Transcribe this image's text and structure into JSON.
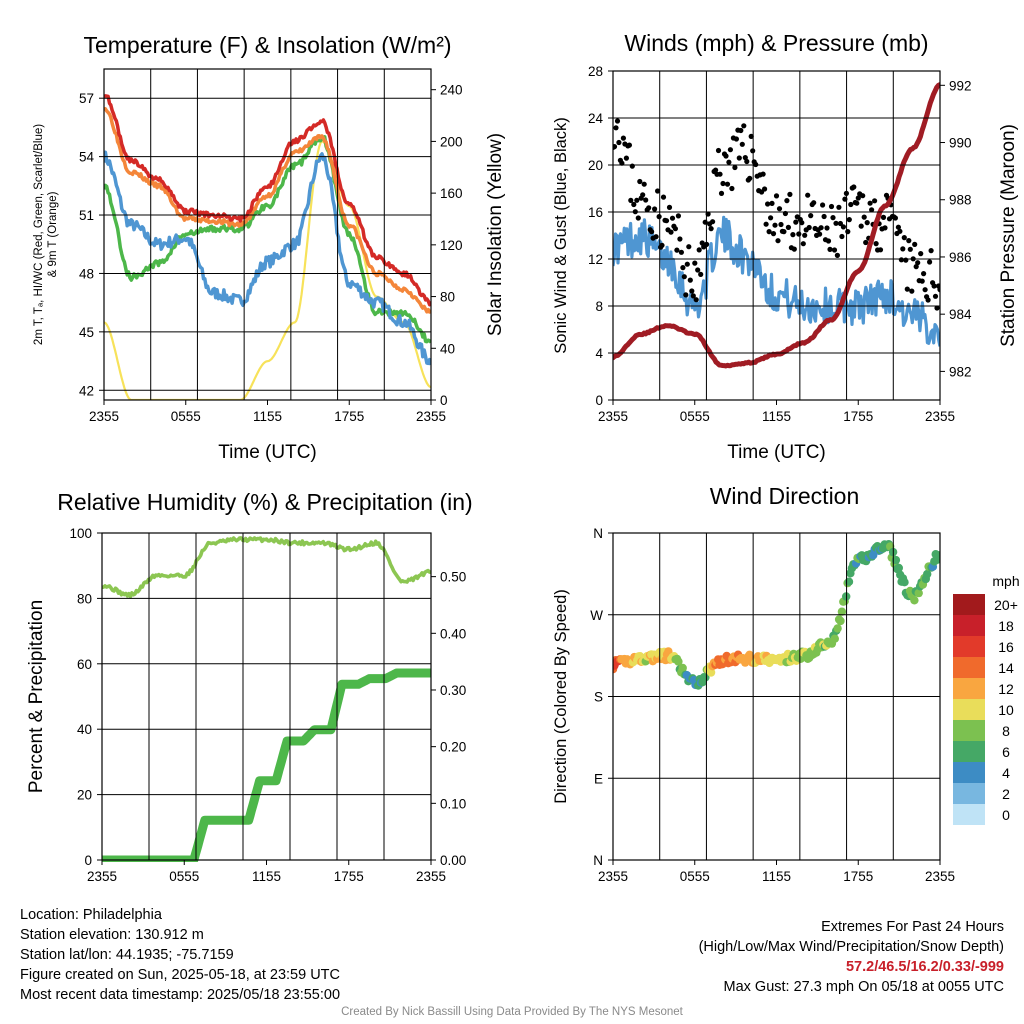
{
  "charts": {
    "temp": {
      "title": "Temperature (F) & Insolation (W/m²)",
      "xlabel": "Time (UTC)",
      "ylabel_lines": [
        "2m T, Tₐ, HI/WC (Red, Green, Scarlet/Blue)",
        "& 9m T (Orange)"
      ],
      "ylabel_right": "Solar Insolation (Yellow)",
      "x_ticks": [
        "2355",
        "0555",
        "1155",
        "1755",
        "2355"
      ],
      "y_ticks": [
        "42",
        "45",
        "48",
        "51",
        "54",
        "57"
      ],
      "y2_ticks": [
        "0",
        "40",
        "80",
        "120",
        "160",
        "200",
        "240"
      ]
    },
    "wind": {
      "title": "Winds (mph) & Pressure (mb)",
      "xlabel": "Time (UTC)",
      "ylabel": "Sonic Wind & Gust (Blue, Black)",
      "ylabel_right": "Station Pressure (Maroon)",
      "x_ticks": [
        "2355",
        "0555",
        "1155",
        "1755",
        "2355"
      ],
      "y_ticks": [
        "0",
        "4",
        "8",
        "12",
        "16",
        "20",
        "24",
        "28"
      ],
      "y2_ticks": [
        "982",
        "984",
        "986",
        "988",
        "990",
        "992"
      ]
    },
    "rh": {
      "title": "Relative Humidity (%) & Precipitation (in)",
      "ylabel": "Percent & Precipitation",
      "x_ticks": [
        "2355",
        "0555",
        "1155",
        "1755",
        "2355"
      ],
      "y_ticks": [
        "0",
        "20",
        "40",
        "60",
        "80",
        "100"
      ],
      "y2_ticks": [
        "0.00",
        "0.10",
        "0.20",
        "0.30",
        "0.40",
        "0.50"
      ]
    },
    "dir": {
      "title": "Wind Direction",
      "ylabel": "Direction (Colored By Speed)",
      "x_ticks": [
        "2355",
        "0555",
        "1155",
        "1755",
        "2355"
      ],
      "y_ticks": [
        "N",
        "E",
        "S",
        "W",
        "N"
      ],
      "legend_title": "mph",
      "legend_labels": [
        "20+",
        "18",
        "16",
        "14",
        "12",
        "10",
        "8",
        "6",
        "4",
        "2",
        "0"
      ],
      "legend_colors": [
        "#a21a1c",
        "#c8202a",
        "#e23a2a",
        "#f06a2c",
        "#f9a640",
        "#e9dd5a",
        "#7cc150",
        "#45a866",
        "#3d8cc4",
        "#78b7e0",
        "#bfe3f6"
      ]
    }
  },
  "info": {
    "location": "Location: Philadelphia",
    "elevation": "Station elevation: 130.912 m",
    "latlon": "Station lat/lon: 44.1935; -75.7159",
    "created": "Figure created on Sun, 2025-05-18, at 23:59 UTC",
    "recent": "Most recent data timestamp: 2025/05/18 23:55:00",
    "extremes_title": "Extremes For Past 24 Hours",
    "extremes_desc": "(High/Low/Max Wind/Precipitation/Snow Depth)",
    "extremes_values": "57.2/46.5/16.2/0.33/-999",
    "max_gust": "Max Gust: 27.3 mph On 05/18 at 0055 UTC",
    "credit": "Created By Nick Bassill Using Data Provided By The NYS Mesonet"
  },
  "colors": {
    "temp_red": "#d42a26",
    "temp_orange": "#f4863a",
    "dewpoint_green": "#4db74a",
    "wind_blue": "#4f96d2",
    "gust_black": "#000000",
    "pressure_maroon": "#a01c24",
    "solar_yellow": "#f7e25a",
    "rh_lightgreen": "#8cc652",
    "precip_green": "#4db74a"
  },
  "chart_data": [
    {
      "type": "line",
      "title": "Temperature (F) & Insolation (W/m²)",
      "xlabel": "Time (UTC)",
      "x": [
        "2355",
        "0155",
        "0355",
        "0555",
        "0755",
        "0955",
        "1155",
        "1355",
        "1555",
        "1755",
        "1955",
        "2155",
        "2355"
      ],
      "ylim": [
        41.5,
        58.5
      ],
      "y2lim": [
        0,
        256
      ],
      "series": [
        {
          "name": "2m T",
          "axis": "left",
          "values": [
            57.2,
            53.8,
            52.8,
            51.2,
            51.0,
            50.8,
            52.5,
            54.8,
            55.8,
            51.5,
            48.8,
            48.0,
            46.5
          ]
        },
        {
          "name": "9m T",
          "axis": "left",
          "values": [
            56.5,
            53.2,
            52.5,
            50.8,
            50.7,
            50.5,
            52.0,
            54.2,
            55.0,
            50.5,
            48.0,
            47.2,
            46.0
          ]
        },
        {
          "name": "HI/WC",
          "axis": "left",
          "values": [
            54.0,
            50.5,
            49.5,
            49.8,
            47.0,
            46.6,
            48.6,
            49.5,
            54.0,
            47.5,
            46.5,
            45.5,
            43.5
          ]
        },
        {
          "name": "Tₐ",
          "axis": "left",
          "values": [
            52.5,
            47.8,
            48.5,
            50.0,
            50.3,
            50.3,
            51.5,
            53.5,
            55.0,
            50.0,
            46.0,
            46.0,
            44.5
          ]
        },
        {
          "name": "Solar Insolation",
          "axis": "right",
          "values": [
            60,
            0,
            0,
            0,
            0,
            0,
            30,
            60,
            200,
            150,
            80,
            60,
            10
          ]
        }
      ]
    },
    {
      "type": "line",
      "title": "Winds (mph) & Pressure (mb)",
      "xlabel": "Time (UTC)",
      "x": [
        "2355",
        "0155",
        "0355",
        "0555",
        "0755",
        "0955",
        "1155",
        "1355",
        "1555",
        "1755",
        "1955",
        "2155",
        "2355"
      ],
      "ylim": [
        0,
        28
      ],
      "y2lim": [
        981,
        992.5
      ],
      "series": [
        {
          "name": "Sonic Wind",
          "axis": "left",
          "values": [
            13,
            14,
            12,
            8,
            14,
            12,
            9,
            8,
            8,
            8,
            9,
            7,
            6
          ]
        },
        {
          "name": "Gust",
          "axis": "left",
          "values": [
            24,
            17,
            15,
            10,
            20,
            21,
            15,
            15,
            14,
            16,
            15,
            11,
            10
          ]
        },
        {
          "name": "Station Pressure",
          "axis": "right",
          "values": [
            982.5,
            983.3,
            983.6,
            983.3,
            982.2,
            982.3,
            982.6,
            983.0,
            983.8,
            985.5,
            987.8,
            989.8,
            992.0
          ]
        }
      ]
    },
    {
      "type": "line",
      "title": "Relative Humidity (%) & Precipitation (in)",
      "x": [
        "2355",
        "0155",
        "0355",
        "0555",
        "0755",
        "0955",
        "1155",
        "1355",
        "1555",
        "1755",
        "1955",
        "2155",
        "2355"
      ],
      "ylim": [
        0,
        100
      ],
      "y2lim": [
        0,
        0.577
      ],
      "series": [
        {
          "name": "Relative Humidity",
          "axis": "left",
          "values": [
            84,
            81,
            87,
            87,
            97,
            98,
            98,
            97,
            97,
            95,
            97,
            85,
            88
          ]
        },
        {
          "name": "Precipitation",
          "axis": "right",
          "values": [
            0.0,
            0.0,
            0.0,
            0.0,
            0.07,
            0.07,
            0.14,
            0.21,
            0.23,
            0.31,
            0.32,
            0.33,
            0.33
          ]
        }
      ]
    },
    {
      "type": "scatter",
      "title": "Wind Direction",
      "x": [
        "2355",
        "0155",
        "0355",
        "0555",
        "0755",
        "0955",
        "1155",
        "1355",
        "1555",
        "1755",
        "1955",
        "2155",
        "2355"
      ],
      "ylim": [
        0,
        360
      ],
      "y_ticks": [
        "N",
        "E",
        "S",
        "W",
        "N"
      ],
      "series": [
        {
          "name": "Direction",
          "values": [
            215,
            222,
            225,
            195,
            220,
            222,
            220,
            225,
            242,
            330,
            345,
            290,
            335
          ]
        },
        {
          "name": "Speed",
          "values": [
            15,
            10,
            11,
            4,
            14,
            12,
            10,
            9,
            8,
            6,
            6,
            7,
            6
          ]
        }
      ]
    }
  ]
}
